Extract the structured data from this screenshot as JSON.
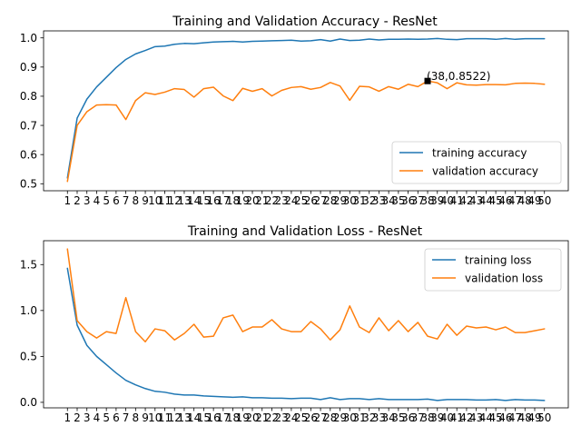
{
  "chart_data": [
    {
      "type": "line",
      "title": "Training and Validation Accuracy - ResNet",
      "xlabel": "",
      "ylabel": "",
      "x": [
        1,
        2,
        3,
        4,
        5,
        6,
        7,
        8,
        9,
        10,
        11,
        12,
        13,
        14,
        15,
        16,
        17,
        18,
        19,
        20,
        21,
        22,
        23,
        24,
        25,
        26,
        27,
        28,
        29,
        30,
        31,
        32,
        33,
        34,
        35,
        36,
        37,
        38,
        39,
        40,
        41,
        42,
        43,
        44,
        45,
        46,
        47,
        48,
        49,
        50
      ],
      "xlim": [
        -1.45,
        52.45
      ],
      "ylim": [
        0.476,
        1.024
      ],
      "yticks": [
        0.5,
        0.6,
        0.7,
        0.8,
        0.9,
        1.0
      ],
      "ytick_labels": [
        "0.5",
        "0.6",
        "0.7",
        "0.8",
        "0.9",
        "1.0"
      ],
      "grid": false,
      "legend_position": "lower-right",
      "series": [
        {
          "name": "training accuracy",
          "color": "#1f77b4",
          "values": [
            0.52,
            0.725,
            0.79,
            0.832,
            0.865,
            0.898,
            0.926,
            0.945,
            0.957,
            0.97,
            0.972,
            0.978,
            0.981,
            0.98,
            0.983,
            0.986,
            0.987,
            0.988,
            0.986,
            0.988,
            0.989,
            0.99,
            0.991,
            0.992,
            0.989,
            0.99,
            0.994,
            0.989,
            0.996,
            0.991,
            0.992,
            0.996,
            0.993,
            0.995,
            0.995,
            0.996,
            0.995,
            0.996,
            0.998,
            0.995,
            0.994,
            0.997,
            0.997,
            0.997,
            0.995,
            0.998,
            0.995,
            0.997,
            0.997,
            0.997
          ]
        },
        {
          "name": "validation accuracy",
          "color": "#ff7f0e",
          "values": [
            0.508,
            0.7,
            0.747,
            0.77,
            0.771,
            0.77,
            0.72,
            0.785,
            0.812,
            0.806,
            0.814,
            0.826,
            0.823,
            0.797,
            0.826,
            0.831,
            0.801,
            0.785,
            0.827,
            0.817,
            0.826,
            0.801,
            0.82,
            0.83,
            0.833,
            0.824,
            0.83,
            0.847,
            0.835,
            0.786,
            0.834,
            0.832,
            0.817,
            0.833,
            0.824,
            0.841,
            0.833,
            0.8522,
            0.846,
            0.826,
            0.846,
            0.839,
            0.838,
            0.84,
            0.84,
            0.839,
            0.844,
            0.845,
            0.844,
            0.841
          ]
        }
      ],
      "annotations": [
        {
          "x": 38,
          "y": 0.8522,
          "text": "(38,0.8522)",
          "marker": "square",
          "color": "#000000"
        }
      ]
    },
    {
      "type": "line",
      "title": "Training and Validation Loss - ResNet",
      "xlabel": "",
      "ylabel": "",
      "x": [
        1,
        2,
        3,
        4,
        5,
        6,
        7,
        8,
        9,
        10,
        11,
        12,
        13,
        14,
        15,
        16,
        17,
        18,
        19,
        20,
        21,
        22,
        23,
        24,
        25,
        26,
        27,
        28,
        29,
        30,
        31,
        32,
        33,
        34,
        35,
        36,
        37,
        38,
        39,
        40,
        41,
        42,
        43,
        44,
        45,
        46,
        47,
        48,
        49,
        50
      ],
      "xlim": [
        -1.45,
        52.45
      ],
      "ylim": [
        -0.06,
        1.76
      ],
      "yticks": [
        0.0,
        0.5,
        1.0,
        1.5
      ],
      "ytick_labels": [
        "0.0",
        "0.5",
        "1.0",
        "1.5"
      ],
      "grid": false,
      "legend_position": "upper-right",
      "series": [
        {
          "name": "training loss",
          "color": "#1f77b4",
          "values": [
            1.46,
            0.84,
            0.62,
            0.5,
            0.41,
            0.32,
            0.24,
            0.19,
            0.15,
            0.12,
            0.11,
            0.09,
            0.08,
            0.08,
            0.07,
            0.065,
            0.06,
            0.055,
            0.06,
            0.05,
            0.05,
            0.045,
            0.045,
            0.04,
            0.045,
            0.045,
            0.03,
            0.05,
            0.03,
            0.04,
            0.04,
            0.03,
            0.04,
            0.03,
            0.03,
            0.03,
            0.03,
            0.035,
            0.02,
            0.03,
            0.03,
            0.03,
            0.025,
            0.025,
            0.03,
            0.02,
            0.03,
            0.025,
            0.025,
            0.02
          ]
        },
        {
          "name": "validation loss",
          "color": "#ff7f0e",
          "values": [
            1.67,
            0.89,
            0.77,
            0.7,
            0.77,
            0.75,
            1.14,
            0.77,
            0.66,
            0.8,
            0.78,
            0.68,
            0.75,
            0.85,
            0.71,
            0.72,
            0.92,
            0.95,
            0.77,
            0.82,
            0.82,
            0.9,
            0.8,
            0.77,
            0.77,
            0.88,
            0.8,
            0.68,
            0.79,
            1.05,
            0.82,
            0.76,
            0.92,
            0.78,
            0.89,
            0.77,
            0.87,
            0.72,
            0.69,
            0.85,
            0.73,
            0.83,
            0.81,
            0.82,
            0.79,
            0.82,
            0.76,
            0.76,
            0.78,
            0.8
          ]
        }
      ],
      "annotations": []
    }
  ]
}
